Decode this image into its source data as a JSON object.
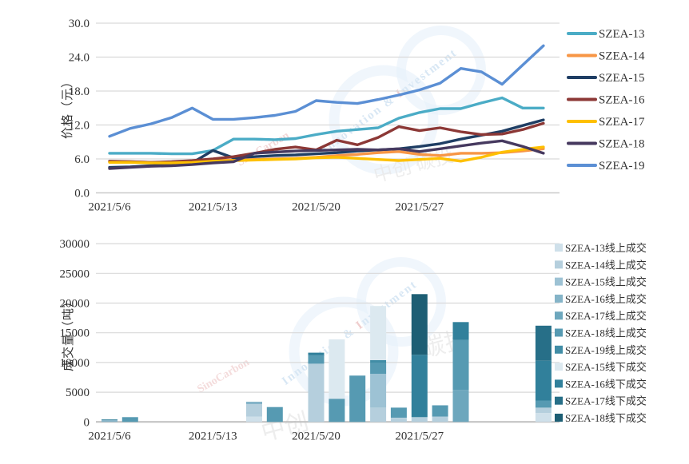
{
  "watermark": {
    "phrase": "Innovation & Investment",
    "brand_red": "SinoCarbon",
    "cjk_top": "中创 碳投",
    "cjk_bottom_left": "中创",
    "cjk_bottom_right": "碳投",
    "circle_color": "#cfe3f5",
    "text_color": "#b9d4ec",
    "red_color": "#e2a4a4"
  },
  "chart_data": [
    {
      "type": "line",
      "name": "price-chart",
      "title": "",
      "ylabel": "价格（元）",
      "xlabel": "",
      "ylim": [
        0,
        30
      ],
      "yticks": [
        0,
        6,
        12,
        18,
        24,
        30
      ],
      "ytick_labels": [
        "0.0",
        "6.0",
        "12.0",
        "18.0",
        "24.0",
        "30.0"
      ],
      "grid": true,
      "legend_position": "right",
      "x": [
        "2021/5/6",
        "2021/5/7",
        "2021/5/10",
        "2021/5/11",
        "2021/5/12",
        "2021/5/13",
        "2021/5/14",
        "2021/5/17",
        "2021/5/18",
        "2021/5/19",
        "2021/5/20",
        "2021/5/21",
        "2021/5/24",
        "2021/5/25",
        "2021/5/26",
        "2021/5/27",
        "2021/5/28",
        "2021/5/31",
        "2021/6/1",
        "2021/6/2",
        "2021/6/3",
        "2021/6/4"
      ],
      "xtick_indices": [
        0,
        5,
        10,
        15
      ],
      "xtick_labels": [
        "2021/5/6",
        "2021/5/13",
        "2021/5/20",
        "2021/5/27"
      ],
      "series": [
        {
          "name": "SZEA-13",
          "color": "#4bacc6",
          "values": [
            7.0,
            7.0,
            7.0,
            6.9,
            6.9,
            7.5,
            9.5,
            9.5,
            9.4,
            9.6,
            10.3,
            10.9,
            11.2,
            11.5,
            13.2,
            14.2,
            14.9,
            14.9,
            15.9,
            16.8,
            15.0,
            15.0
          ]
        },
        {
          "name": "SZEA-14",
          "color": "#f79646",
          "values": [
            5.5,
            5.5,
            5.4,
            5.4,
            5.5,
            5.7,
            5.8,
            5.9,
            6.0,
            6.1,
            6.3,
            6.6,
            6.8,
            7.1,
            7.3,
            6.8,
            6.6,
            7.0,
            7.0,
            7.1,
            7.4,
            7.8
          ]
        },
        {
          "name": "SZEA-15",
          "color": "#1f3e64",
          "values": [
            4.5,
            4.6,
            4.8,
            5.0,
            5.3,
            7.5,
            6.2,
            6.4,
            6.6,
            6.7,
            6.9,
            7.1,
            7.4,
            7.6,
            7.8,
            8.2,
            8.7,
            9.5,
            10.2,
            10.9,
            11.9,
            12.9
          ]
        },
        {
          "name": "SZEA-16",
          "color": "#8c3836",
          "values": [
            5.6,
            5.5,
            5.4,
            5.5,
            5.7,
            6.0,
            6.4,
            7.0,
            7.7,
            8.1,
            7.6,
            9.3,
            8.5,
            9.8,
            11.7,
            11.0,
            11.5,
            10.8,
            10.3,
            10.4,
            11.2,
            12.3
          ]
        },
        {
          "name": "SZEA-17",
          "color": "#fec000",
          "values": [
            5.4,
            5.4,
            5.3,
            5.3,
            5.4,
            5.6,
            5.7,
            5.8,
            5.9,
            6.0,
            6.2,
            6.3,
            6.1,
            5.9,
            5.7,
            5.9,
            6.1,
            5.6,
            6.3,
            7.2,
            7.7,
            8.1
          ]
        },
        {
          "name": "SZEA-18",
          "color": "#46395f",
          "values": [
            4.3,
            4.5,
            4.7,
            4.8,
            5.0,
            5.3,
            5.5,
            7.0,
            7.2,
            7.4,
            7.5,
            7.6,
            7.7,
            7.6,
            7.8,
            7.3,
            7.8,
            8.3,
            8.8,
            9.2,
            8.2,
            7.0
          ]
        },
        {
          "name": "SZEA-19",
          "color": "#5b8fd4",
          "values": [
            10.0,
            11.4,
            12.2,
            13.3,
            15.0,
            13.0,
            13.0,
            13.3,
            13.7,
            14.4,
            16.3,
            16.0,
            15.8,
            16.5,
            17.3,
            18.2,
            19.4,
            22.0,
            21.4,
            19.2,
            22.6,
            26.0
          ]
        }
      ]
    },
    {
      "type": "bar",
      "name": "volume-chart",
      "title": "",
      "ylabel": "成交量（吨）",
      "xlabel": "",
      "ylim": [
        0,
        30000
      ],
      "yticks": [
        0,
        5000,
        10000,
        15000,
        20000,
        25000,
        30000
      ],
      "ytick_labels": [
        "0",
        "5000",
        "10000",
        "15000",
        "20000",
        "25000",
        "30000"
      ],
      "grid": true,
      "stacked": true,
      "legend_position": "right",
      "x": [
        "2021/5/6",
        "2021/5/7",
        "2021/5/10",
        "2021/5/11",
        "2021/5/12",
        "2021/5/13",
        "2021/5/14",
        "2021/5/17",
        "2021/5/18",
        "2021/5/19",
        "2021/5/20",
        "2021/5/21",
        "2021/5/24",
        "2021/5/25",
        "2021/5/26",
        "2021/5/27",
        "2021/5/28",
        "2021/5/31",
        "2021/6/1",
        "2021/6/2",
        "2021/6/3",
        "2021/6/4"
      ],
      "xtick_indices": [
        0,
        5,
        10,
        15
      ],
      "xtick_labels": [
        "2021/5/6",
        "2021/5/13",
        "2021/5/20",
        "2021/5/27"
      ],
      "legend": [
        {
          "name": "SZEA-13线上成交",
          "color": "#cfe0ea"
        },
        {
          "name": "SZEA-14线上成交",
          "color": "#b5cfdd"
        },
        {
          "name": "SZEA-15线上成交",
          "color": "#9dc2d4"
        },
        {
          "name": "SZEA-16线上成交",
          "color": "#85b4c8"
        },
        {
          "name": "SZEA-17线上成交",
          "color": "#6da7bd"
        },
        {
          "name": "SZEA-18线上成交",
          "color": "#569ab2"
        },
        {
          "name": "SZEA-19线上成交",
          "color": "#418da6"
        },
        {
          "name": "SZEA-15线下成交",
          "color": "#dce9f0"
        },
        {
          "name": "SZEA-16线下成交",
          "color": "#31809b"
        },
        {
          "name": "SZEA-17线下成交",
          "color": "#276f88"
        },
        {
          "name": "SZEA-18线下成交",
          "color": "#1d5e74"
        }
      ],
      "bars": [
        {
          "date": "2021/5/6",
          "segments": [
            {
              "series": "SZEA-16线上成交",
              "value": 300
            },
            {
              "series": "SZEA-16线下成交",
              "value": 120
            }
          ]
        },
        {
          "date": "2021/5/7",
          "segments": [
            {
              "series": "SZEA-18线上成交",
              "value": 800
            }
          ]
        },
        {
          "date": "2021/5/17",
          "segments": [
            {
              "series": "SZEA-13线上成交",
              "value": 900
            },
            {
              "series": "SZEA-14线上成交",
              "value": 2100
            },
            {
              "series": "SZEA-16线上成交",
              "value": 400
            }
          ]
        },
        {
          "date": "2021/5/18",
          "segments": [
            {
              "series": "SZEA-18线上成交",
              "value": 2500
            }
          ]
        },
        {
          "date": "2021/5/20",
          "segments": [
            {
              "series": "SZEA-14线上成交",
              "value": 9800
            },
            {
              "series": "SZEA-18线上成交",
              "value": 1400
            },
            {
              "series": "SZEA-16线下成交",
              "value": 450
            }
          ]
        },
        {
          "date": "2021/5/21",
          "segments": [
            {
              "series": "SZEA-18线上成交",
              "value": 3900
            },
            {
              "series": "SZEA-15线下成交",
              "value": 10000
            }
          ]
        },
        {
          "date": "2021/5/24",
          "segments": [
            {
              "series": "SZEA-18线上成交",
              "value": 7800
            }
          ]
        },
        {
          "date": "2021/5/25",
          "segments": [
            {
              "series": "SZEA-14线上成交",
              "value": 2400
            },
            {
              "series": "SZEA-15线上成交",
              "value": 5700
            },
            {
              "series": "SZEA-18线上成交",
              "value": 1800
            },
            {
              "series": "SZEA-19线上成交",
              "value": 500
            },
            {
              "series": "SZEA-15线下成交",
              "value": 9100
            }
          ]
        },
        {
          "date": "2021/5/26",
          "segments": [
            {
              "series": "SZEA-14线上成交",
              "value": 700
            },
            {
              "series": "SZEA-18线上成交",
              "value": 1700
            }
          ]
        },
        {
          "date": "2021/5/27",
          "segments": [
            {
              "series": "SZEA-14线上成交",
              "value": 800
            },
            {
              "series": "SZEA-16线下成交",
              "value": 10500
            },
            {
              "series": "SZEA-18线下成交",
              "value": 10200
            }
          ]
        },
        {
          "date": "2021/5/28",
          "segments": [
            {
              "series": "SZEA-14线上成交",
              "value": 900
            },
            {
              "series": "SZEA-18线上成交",
              "value": 1900
            }
          ]
        },
        {
          "date": "2021/5/31",
          "segments": [
            {
              "series": "SZEA-17线上成交",
              "value": 5400
            },
            {
              "series": "SZEA-18线上成交",
              "value": 8400
            },
            {
              "series": "SZEA-16线下成交",
              "value": 3000
            }
          ]
        },
        {
          "date": "2021/6/4",
          "segments": [
            {
              "series": "SZEA-13线上成交",
              "value": 1500
            },
            {
              "series": "SZEA-14线上成交",
              "value": 900
            },
            {
              "series": "SZEA-18线上成交",
              "value": 1200
            },
            {
              "series": "SZEA-16线下成交",
              "value": 6700
            },
            {
              "series": "SZEA-17线下成交",
              "value": 5900
            }
          ]
        }
      ]
    }
  ]
}
